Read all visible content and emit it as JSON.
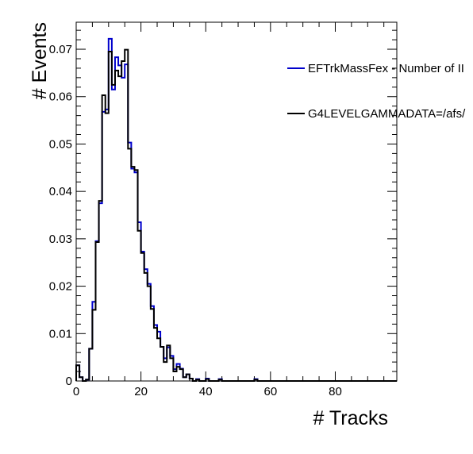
{
  "chart_data": {
    "type": "histogram",
    "xlabel": "# Tracks",
    "ylabel": "# Events",
    "xlim": [
      0,
      99
    ],
    "ylim": [
      0,
      0.0757
    ],
    "bin_width": 1,
    "x_ticks": [
      0,
      20,
      40,
      60,
      80
    ],
    "y_ticks": [
      0,
      0.01,
      0.02,
      0.03,
      0.04,
      0.05,
      0.06,
      0.07
    ],
    "y_tick_labels": [
      "0",
      "0.01",
      "0.02",
      "0.03",
      "0.04",
      "0.05",
      "0.06",
      "0.07"
    ],
    "legend_position": "top-right",
    "series": [
      {
        "name": "EFTrkMassFex - Number of II",
        "color": "#0000cc",
        "values": [
          0.0033,
          0.0008,
          0.0,
          0.0003,
          0.0068,
          0.0167,
          0.0295,
          0.0375,
          0.0568,
          0.0573,
          0.0722,
          0.0615,
          0.0683,
          0.0666,
          0.064,
          0.0668,
          0.0503,
          0.0448,
          0.044,
          0.0335,
          0.0273,
          0.0236,
          0.0205,
          0.0158,
          0.0118,
          0.0104,
          0.0072,
          0.0048,
          0.0071,
          0.0053,
          0.0025,
          0.0036,
          0.0026,
          0.0008,
          0.0014,
          0.0005,
          0.0,
          0.0004,
          0.0,
          0.0,
          0.0005,
          0.0,
          0.0,
          0.0,
          0.0004,
          0.0,
          0.0,
          0.0,
          0.0,
          0.0,
          0.0,
          0.0,
          0.0,
          0.0,
          0.0,
          0.0004,
          0.0,
          0.0,
          0.0,
          0.0,
          0.0,
          0.0,
          0.0,
          0.0,
          0.0,
          0.0,
          0.0,
          0.0,
          0.0,
          0.0,
          0.0,
          0.0,
          0.0,
          0.0,
          0.0,
          0.0,
          0.0,
          0.0,
          0.0,
          0.0,
          0.0,
          0.0,
          0.0,
          0.0,
          0.0,
          0.0,
          0.0,
          0.0,
          0.0,
          0.0,
          0.0,
          0.0,
          0.0,
          0.0,
          0.0,
          0.0,
          0.0,
          0.0,
          0.0
        ]
      },
      {
        "name": "G4LEVELGAMMADATA=/afs/",
        "color": "#000000",
        "values": [
          0.0033,
          0.0008,
          0.0,
          0.0003,
          0.0068,
          0.015,
          0.0293,
          0.038,
          0.0603,
          0.0565,
          0.0695,
          0.0625,
          0.0655,
          0.0643,
          0.0675,
          0.0699,
          0.049,
          0.0452,
          0.0445,
          0.0317,
          0.027,
          0.0228,
          0.02,
          0.0152,
          0.0112,
          0.009,
          0.0072,
          0.004,
          0.0075,
          0.0048,
          0.002,
          0.003,
          0.0025,
          0.0008,
          0.0014,
          0.0005,
          0.0,
          0.0003,
          0.0,
          0.0,
          0.0004,
          0.0,
          0.0,
          0.0,
          0.0003,
          0.0,
          0.0,
          0.0,
          0.0,
          0.0,
          0.0,
          0.0,
          0.0,
          0.0,
          0.0,
          0.0003,
          0.0,
          0.0,
          0.0,
          0.0,
          0.0,
          0.0,
          0.0,
          0.0,
          0.0,
          0.0,
          0.0,
          0.0,
          0.0,
          0.0,
          0.0,
          0.0,
          0.0,
          0.0,
          0.0,
          0.0,
          0.0,
          0.0,
          0.0,
          0.0,
          0.0,
          0.0,
          0.0,
          0.0,
          0.0,
          0.0,
          0.0,
          0.0,
          0.0,
          0.0,
          0.0,
          0.0,
          0.0,
          0.0,
          0.0,
          0.0,
          0.0,
          0.0,
          0.0
        ]
      }
    ]
  }
}
